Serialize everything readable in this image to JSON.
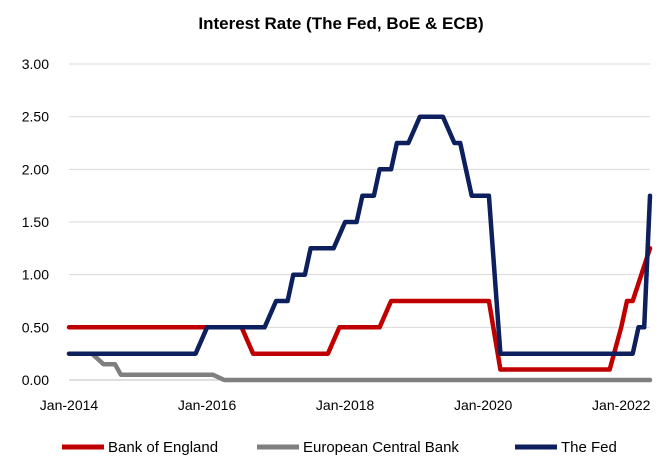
{
  "chart_data": {
    "type": "line",
    "title": "Interest Rate (The Fed, BoE & ECB)",
    "xlabel": "",
    "ylabel": "",
    "x_start": "2014-01",
    "x_end": "2022-06",
    "x_tick_labels": [
      "Jan-2014",
      "Jan-2016",
      "Jan-2018",
      "Jan-2020",
      "Jan-2022"
    ],
    "x_tick_dates": [
      "2014-01",
      "2016-01",
      "2018-01",
      "2020-01",
      "2022-01"
    ],
    "ylim": [
      0,
      3
    ],
    "y_ticks": [
      "0.00",
      "0.50",
      "1.00",
      "1.50",
      "2.00",
      "2.50",
      "3.00"
    ],
    "grid": true,
    "legend_position": "bottom",
    "series": [
      {
        "name": "Bank of England",
        "color": "#c00000",
        "points": [
          [
            "2014-01",
            0.5
          ],
          [
            "2016-07",
            0.5
          ],
          [
            "2016-09",
            0.25
          ],
          [
            "2017-10",
            0.25
          ],
          [
            "2017-12",
            0.5
          ],
          [
            "2018-07",
            0.5
          ],
          [
            "2018-09",
            0.75
          ],
          [
            "2020-02",
            0.75
          ],
          [
            "2020-04",
            0.1
          ],
          [
            "2021-11",
            0.1
          ],
          [
            "2022-01",
            0.5
          ],
          [
            "2022-02",
            0.75
          ],
          [
            "2022-03",
            0.75
          ],
          [
            "2022-06",
            1.25
          ]
        ]
      },
      {
        "name": "European Central Bank",
        "color": "#7f7f7f",
        "points": [
          [
            "2014-01",
            0.25
          ],
          [
            "2014-05",
            0.25
          ],
          [
            "2014-07",
            0.15
          ],
          [
            "2014-09",
            0.15
          ],
          [
            "2014-10",
            0.05
          ],
          [
            "2016-02",
            0.05
          ],
          [
            "2016-04",
            0.0
          ],
          [
            "2022-06",
            0.0
          ]
        ]
      },
      {
        "name": "The Fed",
        "color": "#0d1f5c",
        "points": [
          [
            "2014-01",
            0.25
          ],
          [
            "2015-11",
            0.25
          ],
          [
            "2016-01",
            0.5
          ],
          [
            "2016-11",
            0.5
          ],
          [
            "2017-01",
            0.75
          ],
          [
            "2017-03",
            0.75
          ],
          [
            "2017-04",
            1.0
          ],
          [
            "2017-06",
            1.0
          ],
          [
            "2017-07",
            1.25
          ],
          [
            "2017-11",
            1.25
          ],
          [
            "2018-01",
            1.5
          ],
          [
            "2018-03",
            1.5
          ],
          [
            "2018-04",
            1.75
          ],
          [
            "2018-06",
            1.75
          ],
          [
            "2018-07",
            2.0
          ],
          [
            "2018-09",
            2.0
          ],
          [
            "2018-10",
            2.25
          ],
          [
            "2018-12",
            2.25
          ],
          [
            "2019-02",
            2.5
          ],
          [
            "2019-06",
            2.5
          ],
          [
            "2019-08",
            2.25
          ],
          [
            "2019-09",
            2.25
          ],
          [
            "2019-11",
            1.75
          ],
          [
            "2020-02",
            1.75
          ],
          [
            "2020-04",
            0.25
          ],
          [
            "2022-03",
            0.25
          ],
          [
            "2022-04",
            0.5
          ],
          [
            "2022-05",
            0.5
          ],
          [
            "2022-06",
            1.75
          ]
        ]
      }
    ]
  }
}
